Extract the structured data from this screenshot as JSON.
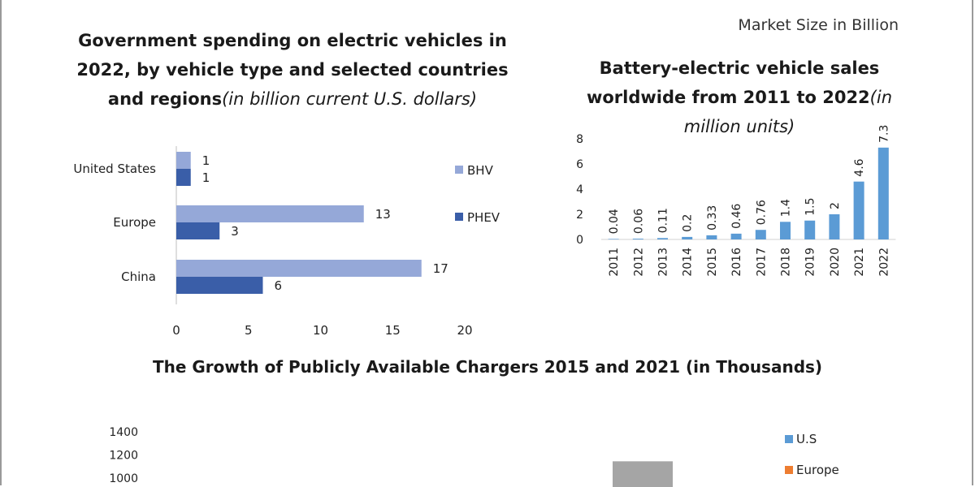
{
  "header": {
    "market_label": "Market Size in Billion"
  },
  "chart_data": [
    {
      "type": "bar",
      "orientation": "horizontal",
      "title": "Government spending on electric vehicles in 2022, by vehicle type and selected countries and regions",
      "subtitle": "(in billion current U.S. dollars)",
      "categories": [
        "United States",
        "Europe",
        "China"
      ],
      "series": [
        {
          "name": "BHV",
          "values": [
            1,
            13,
            17
          ],
          "color": "#95a8d8"
        },
        {
          "name": "PHEV",
          "values": [
            1,
            3,
            6
          ],
          "color": "#3a5ea8"
        }
      ],
      "xlim": [
        0,
        20
      ],
      "xticks": [
        "0",
        "5",
        "10",
        "15",
        "20"
      ],
      "legend": "right"
    },
    {
      "type": "bar",
      "title": "Battery-electric vehicle sales worldwide from 2011 to 2022",
      "subtitle": "(in million units)",
      "categories": [
        "2011",
        "2012",
        "2013",
        "2014",
        "2015",
        "2016",
        "2017",
        "2018",
        "2019",
        "2020",
        "2021",
        "2022"
      ],
      "values": [
        0.04,
        0.06,
        0.11,
        0.2,
        0.33,
        0.46,
        0.76,
        1.4,
        1.5,
        2,
        4.6,
        7.3
      ],
      "labels": [
        "0.04",
        "0.06",
        "0.11",
        "0.2",
        "0.33",
        "0.46",
        "0.76",
        "1.4",
        "1.5",
        "2",
        "4.6",
        "7.3"
      ],
      "ylim": [
        0,
        8
      ],
      "yticks": [
        "0",
        "2",
        "4",
        "6",
        "8"
      ],
      "color": "#5b9bd5"
    },
    {
      "type": "bar",
      "title": "The Growth of Publicly Available Chargers 2015 and 2021 (in Thousands)",
      "yticks": [
        "1400",
        "1200",
        "1000"
      ],
      "ylim": [
        1000,
        1400
      ],
      "visible_bar": {
        "value": 1145,
        "color": "#a5a5a5"
      },
      "legend_items": [
        {
          "name": "U.S",
          "color": "#5b9bd5"
        },
        {
          "name": "Europe",
          "color": "#ed7d31"
        }
      ],
      "legend": "right"
    }
  ]
}
